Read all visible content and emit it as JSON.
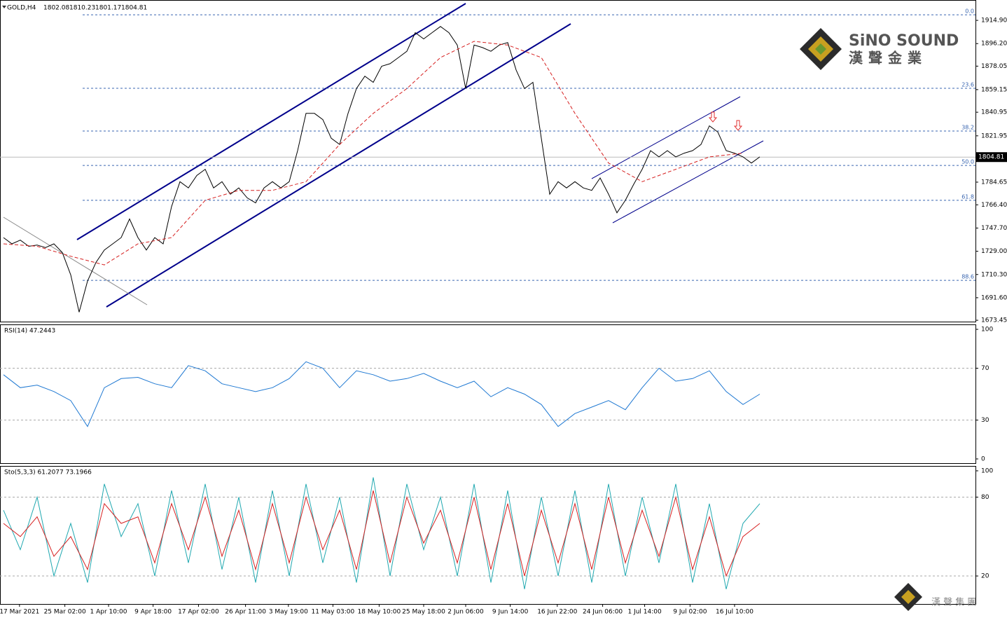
{
  "chart_data": [
    {
      "type": "line",
      "symbol": "GOLD,H4",
      "ohlc": [
        1802.08,
        1810.23,
        1801.17,
        1804.81
      ],
      "xlim": [
        -0.42,
        115.67
      ],
      "xticks": [
        {
          "value": 1.9,
          "label": "17 Mar 2021"
        },
        {
          "value": 7.3,
          "label": "25 Mar 02:00"
        },
        {
          "value": 12.5,
          "label": "1 Apr 10:00"
        },
        {
          "value": 17.8,
          "label": "9 Apr 18:00"
        },
        {
          "value": 23.2,
          "label": "17 Apr 02:00"
        },
        {
          "value": 28.8,
          "label": "26 Apr 11:00"
        },
        {
          "value": 33.9,
          "label": "3 May 19:00"
        },
        {
          "value": 39.2,
          "label": "11 May 03:00"
        },
        {
          "value": 44.7,
          "label": "18 May 10:00"
        },
        {
          "value": 50,
          "label": "25 May 18:00"
        },
        {
          "value": 55,
          "label": "2 Jun 06:00"
        },
        {
          "value": 60.3,
          "label": "9 Jun 14:00"
        },
        {
          "value": 65.9,
          "label": "16 Jun 22:00"
        },
        {
          "value": 71.3,
          "label": "24 Jun 06:00"
        },
        {
          "value": 76.3,
          "label": "1 Jul 14:00"
        },
        {
          "value": 81.7,
          "label": "9 Jul 02:00"
        },
        {
          "value": 87,
          "label": "16 Jul 10:00"
        }
      ],
      "ylim": [
        1671.8,
        1931.3
      ],
      "yticks": [
        {
          "value": 1914.9,
          "label": "1914.90"
        },
        {
          "value": 1896.2,
          "label": "1896.20"
        },
        1878.05,
        1859.15,
        1840.95,
        1821.95,
        1784.65,
        {
          "value": 1766.4,
          "label": "1766.40"
        },
        {
          "value": 1747.7,
          "label": "1747.70"
        },
        {
          "value": 1729,
          "label": "1729.00"
        },
        {
          "value": 1710.3,
          "label": "1710.30"
        },
        {
          "value": 1691.6,
          "label": "1691.60"
        },
        1673.45
      ],
      "last_price": 1804.81,
      "fib_levels": [
        {
          "value": 1919.4,
          "label": "0.0"
        },
        {
          "value": 1860.2,
          "label": "23.6"
        },
        {
          "value": 1825.8,
          "label": "38.2"
        },
        {
          "value": 1798.1,
          "label": "50.0"
        },
        {
          "value": 1770,
          "label": "61.8"
        },
        {
          "value": 1705.6,
          "label": "88.6"
        }
      ],
      "series": [
        {
          "name": "Close",
          "color": "#000000",
          "x": [
            0,
            1,
            2,
            3,
            4,
            5,
            6,
            7,
            8,
            9,
            10,
            11,
            12,
            13,
            14,
            15,
            16,
            17,
            18,
            19,
            20,
            21,
            22,
            23,
            24,
            25,
            26,
            27,
            28,
            29,
            30,
            31,
            32,
            33,
            34,
            35,
            36,
            37,
            38,
            39,
            40,
            41,
            42,
            43,
            44,
            45,
            46,
            47,
            48,
            49,
            50,
            51,
            52,
            53,
            54,
            55,
            56,
            57,
            58,
            59,
            60,
            61,
            62,
            63,
            64,
            65,
            66,
            67,
            68,
            69,
            70,
            71,
            72,
            73,
            74,
            75,
            76,
            77,
            78,
            79,
            80,
            81,
            82,
            83,
            84,
            85,
            86,
            87,
            88,
            89,
            90
          ],
          "values": [
            1740,
            1735,
            1738,
            1733,
            1734,
            1732,
            1735,
            1728,
            1710,
            1680,
            1705,
            1720,
            1730,
            1735,
            1740,
            1755,
            1740,
            1730,
            1740,
            1735,
            1765,
            1785,
            1780,
            1790,
            1795,
            1780,
            1785,
            1775,
            1780,
            1772,
            1768,
            1780,
            1785,
            1780,
            1785,
            1810,
            1840,
            1840,
            1835,
            1820,
            1815,
            1840,
            1860,
            1870,
            1865,
            1878,
            1880,
            1885,
            1890,
            1905,
            1900,
            1905,
            1910,
            1905,
            1895,
            1860,
            1895,
            1893,
            1890,
            1895,
            1897,
            1875,
            1860,
            1865,
            1820,
            1775,
            1785,
            1780,
            1785,
            1780,
            1778,
            1788,
            1775,
            1760,
            1770,
            1783,
            1795,
            1810,
            1805,
            1810,
            1805,
            1808,
            1810,
            1815,
            1830,
            1825,
            1810,
            1808,
            1805,
            1800,
            1805
          ]
        },
        {
          "name": "MA",
          "color": "#d62020",
          "x": [
            0,
            4,
            8,
            12,
            16,
            20,
            24,
            28,
            32,
            36,
            40,
            44,
            48,
            52,
            56,
            60,
            64,
            68,
            72,
            76,
            80,
            84,
            88
          ],
          "values": [
            1735,
            1733,
            1725,
            1718,
            1735,
            1740,
            1770,
            1778,
            1778,
            1785,
            1815,
            1840,
            1860,
            1885,
            1898,
            1895,
            1885,
            1840,
            1800,
            1785,
            1795,
            1805,
            1808
          ]
        }
      ]
    },
    {
      "type": "line",
      "label": "RSI(14) 47.2443",
      "xlim": [
        -0.42,
        115.67
      ],
      "ylim": [
        -3.8,
        103.8
      ],
      "yticks": [
        100,
        70,
        30,
        0
      ],
      "levels": [
        70,
        30
      ],
      "series": [
        {
          "name": "RSI",
          "color": "#1e78d2",
          "x": [
            0,
            2,
            4,
            6,
            8,
            10,
            12,
            14,
            16,
            18,
            20,
            22,
            24,
            26,
            28,
            30,
            32,
            34,
            36,
            38,
            40,
            42,
            44,
            46,
            48,
            50,
            52,
            54,
            56,
            58,
            60,
            62,
            64,
            66,
            68,
            70,
            72,
            74,
            76,
            78,
            80,
            82,
            84,
            86,
            88,
            90
          ],
          "values": [
            65,
            55,
            57,
            52,
            45,
            25,
            55,
            62,
            63,
            58,
            55,
            72,
            68,
            58,
            55,
            52,
            55,
            62,
            75,
            70,
            55,
            68,
            65,
            60,
            62,
            66,
            60,
            55,
            60,
            48,
            55,
            50,
            42,
            25,
            35,
            40,
            45,
            38,
            55,
            70,
            60,
            62,
            68,
            52,
            42,
            50
          ]
        }
      ]
    },
    {
      "type": "line",
      "label": "Sto(5,3,3) 61.2077 73.1966",
      "xlim": [
        -0.42,
        115.67
      ],
      "ylim": [
        -1.3,
        103.7
      ],
      "yticks": [
        100,
        80,
        20
      ],
      "levels": [
        80,
        20
      ],
      "series": [
        {
          "name": "%K",
          "color": "#20a8b0",
          "x": [
            0,
            2,
            4,
            6,
            8,
            10,
            12,
            14,
            16,
            18,
            20,
            22,
            24,
            26,
            28,
            30,
            32,
            34,
            36,
            38,
            40,
            42,
            44,
            46,
            48,
            50,
            52,
            54,
            56,
            58,
            60,
            62,
            64,
            66,
            68,
            70,
            72,
            74,
            76,
            78,
            80,
            82,
            84,
            86,
            88,
            90
          ],
          "values": [
            70,
            40,
            80,
            20,
            60,
            15,
            90,
            50,
            75,
            20,
            85,
            30,
            90,
            25,
            80,
            15,
            85,
            20,
            90,
            30,
            80,
            15,
            95,
            20,
            90,
            40,
            80,
            20,
            90,
            15,
            85,
            10,
            80,
            20,
            85,
            15,
            90,
            20,
            80,
            30,
            90,
            15,
            75,
            10,
            60,
            75
          ]
        },
        {
          "name": "%D",
          "color": "#d62020",
          "x": [
            0,
            2,
            4,
            6,
            8,
            10,
            12,
            14,
            16,
            18,
            20,
            22,
            24,
            26,
            28,
            30,
            32,
            34,
            36,
            38,
            40,
            42,
            44,
            46,
            48,
            50,
            52,
            54,
            56,
            58,
            60,
            62,
            64,
            66,
            68,
            70,
            72,
            74,
            76,
            78,
            80,
            82,
            84,
            86,
            88,
            90
          ],
          "values": [
            60,
            50,
            65,
            35,
            50,
            25,
            75,
            60,
            65,
            30,
            75,
            40,
            80,
            35,
            70,
            25,
            75,
            30,
            80,
            40,
            70,
            25,
            85,
            30,
            80,
            45,
            70,
            30,
            80,
            25,
            75,
            20,
            70,
            30,
            75,
            25,
            80,
            30,
            70,
            35,
            80,
            25,
            65,
            20,
            50,
            60
          ]
        }
      ]
    }
  ],
  "logo": {
    "brand": "SiNO SOUND",
    "chinese": "漢聲金業",
    "footer": "漢 聲 集 團"
  }
}
